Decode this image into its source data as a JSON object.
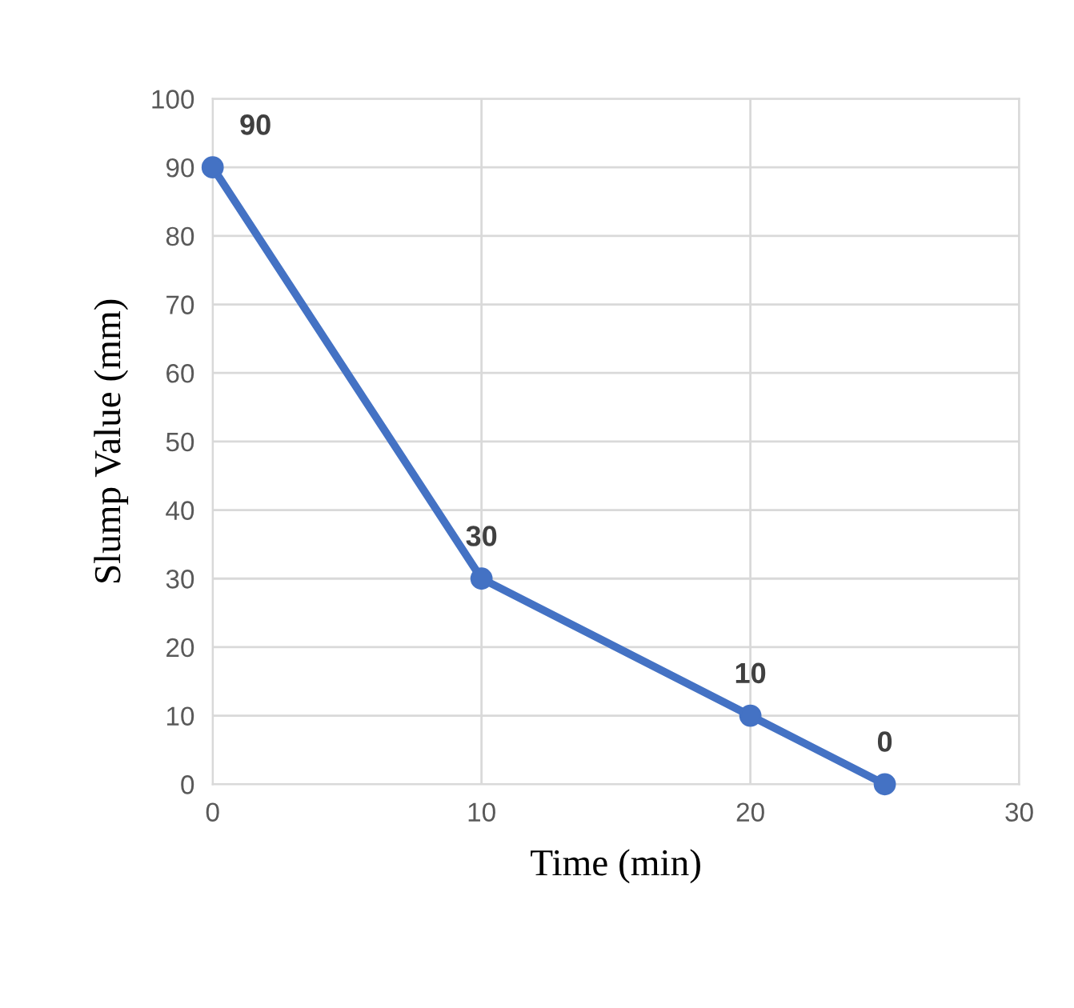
{
  "chart_data": {
    "type": "line",
    "xlabel": "Time (min)",
    "ylabel": "Slump Value (mm)",
    "x": [
      0,
      10,
      20,
      25
    ],
    "series": [
      {
        "color": "#4472c4",
        "values": [
          90,
          30,
          10,
          0
        ]
      }
    ],
    "xlim": [
      0,
      30
    ],
    "xticks": [
      0,
      10,
      20,
      30
    ],
    "ylim": [
      0,
      100
    ],
    "yticks": [
      0,
      10,
      20,
      30,
      40,
      50,
      60,
      70,
      80,
      90,
      100
    ],
    "grid": true,
    "marker": "circle",
    "line_style": "solid",
    "data_labels": true
  }
}
